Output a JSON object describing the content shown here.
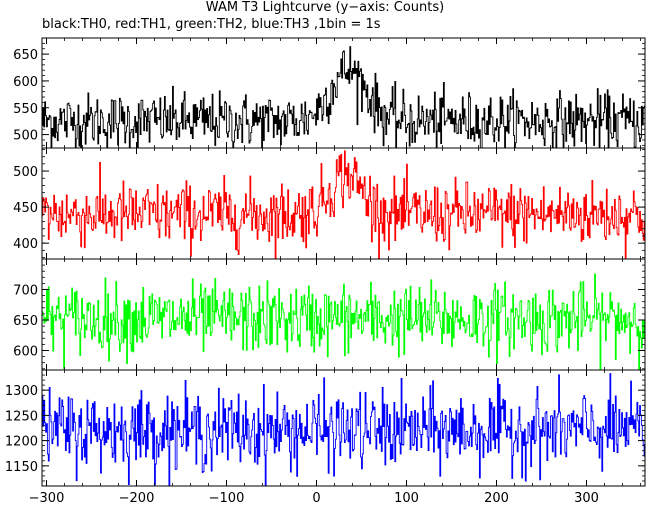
{
  "chart_data": {
    "type": "line",
    "title": "WAM T3 Lightcurve (y−axis: Counts)",
    "subtitle": "black:TH0, red:TH1, green:TH2, blue:TH3 ,1bin = 1s",
    "xlim": [
      -305,
      365
    ],
    "x_ticks": [
      -300,
      -200,
      -100,
      0,
      100,
      200,
      300
    ],
    "x_tick_labels": [
      "−300",
      "−200",
      "−100",
      "0",
      "100",
      "200",
      "300"
    ],
    "x_step": 1,
    "panels": [
      {
        "color": "#000000",
        "ylim": [
          475,
          680
        ],
        "y_ticks": [
          500,
          550,
          600,
          650
        ],
        "y_tick_labels": [
          "500",
          "550",
          "600",
          "650"
        ],
        "baseline": 525,
        "noise_sd": 26,
        "peak": {
          "center": 35,
          "width": 20,
          "amplitude": 95
        }
      },
      {
        "color": "#ff0000",
        "ylim": [
          378,
          532
        ],
        "y_ticks": [
          400,
          450,
          500
        ],
        "y_tick_labels": [
          "400",
          "450",
          "500"
        ],
        "baseline": 440,
        "noise_sd": 22,
        "peak": {
          "center": 32,
          "width": 18,
          "amplitude": 55
        }
      },
      {
        "color": "#00ff00",
        "ylim": [
          568,
          750
        ],
        "y_ticks": [
          600,
          650,
          700
        ],
        "y_tick_labels": [
          "600",
          "650",
          "700"
        ],
        "baseline": 652,
        "noise_sd": 28,
        "peak": null
      },
      {
        "color": "#0000ff",
        "ylim": [
          1110,
          1340
        ],
        "y_ticks": [
          1150,
          1200,
          1250,
          1300
        ],
        "y_tick_labels": [
          "1150",
          "1200",
          "1250",
          "1300"
        ],
        "baseline": 1220,
        "noise_sd": 38,
        "peak": null
      }
    ],
    "grid": false,
    "legend": "none"
  }
}
